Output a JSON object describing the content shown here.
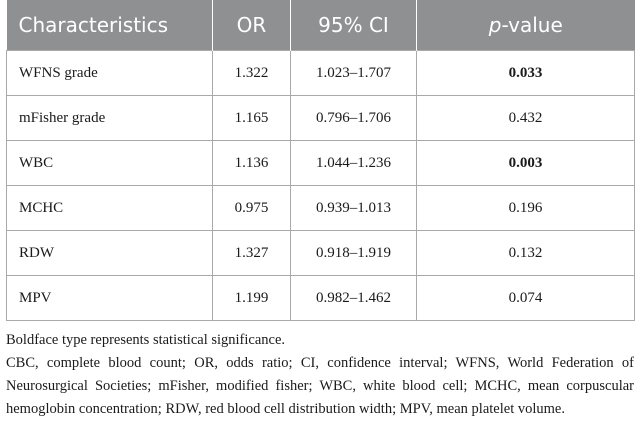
{
  "table": {
    "headers": {
      "characteristics": "Characteristics",
      "or": "OR",
      "ci": "95% CI",
      "p_prefix": "p",
      "p_suffix": "-value"
    },
    "rows": [
      {
        "name": "WFNS grade",
        "or": "1.322",
        "ci": "1.023–1.707",
        "p": "0.033",
        "significant": true
      },
      {
        "name": "mFisher grade",
        "or": "1.165",
        "ci": "0.796–1.706",
        "p": "0.432",
        "significant": false
      },
      {
        "name": "WBC",
        "or": "1.136",
        "ci": "1.044–1.236",
        "p": "0.003",
        "significant": true
      },
      {
        "name": "MCHC",
        "or": "0.975",
        "ci": "0.939–1.013",
        "p": "0.196",
        "significant": false
      },
      {
        "name": "RDW",
        "or": "1.327",
        "ci": "0.918–1.919",
        "p": "0.132",
        "significant": false
      },
      {
        "name": "MPV",
        "or": "1.199",
        "ci": "0.982–1.462",
        "p": "0.074",
        "significant": false
      }
    ]
  },
  "notes": {
    "boldface": "Boldface type represents statistical significance.",
    "abbreviations": "CBC, complete blood count; OR, odds ratio; CI, confidence interval; WFNS, World Federation of Neurosurgical Societies; mFisher, modified fisher; WBC, white blood cell; MCHC, mean corpuscular hemoglobin concentration; RDW, red blood cell distribution width; MPV, mean platelet volume."
  }
}
